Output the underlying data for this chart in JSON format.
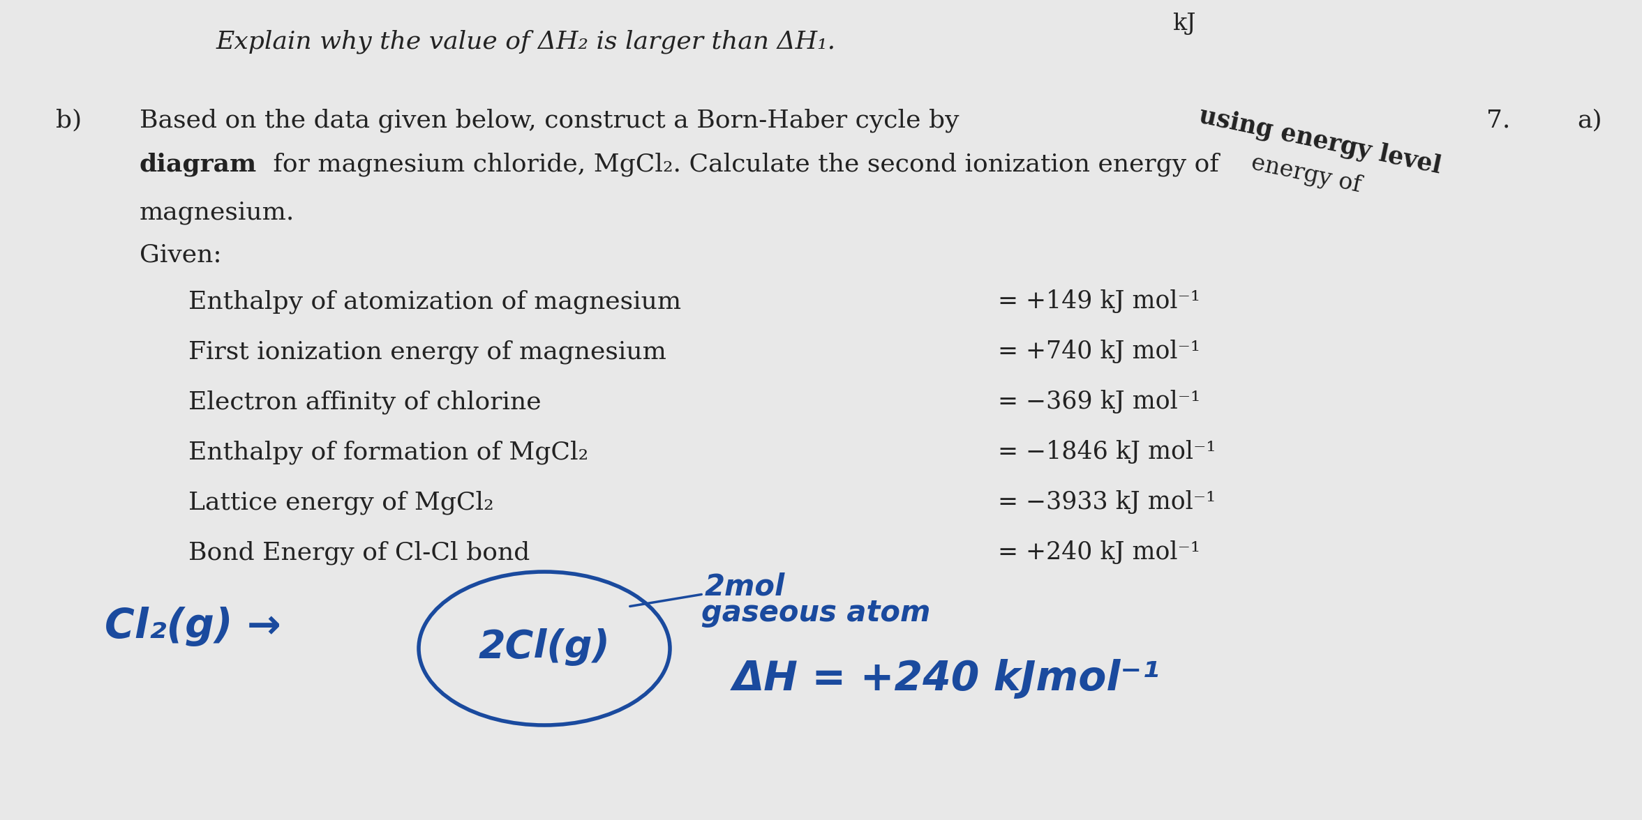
{
  "bg_color": "#e8e8e8",
  "title_line": "Explain why the value of ΔH₂ is larger than ΔH₁.",
  "part_b_label": "b)",
  "given_label": "Given:",
  "labels": [
    "Enthalpy of atomization of magnesium",
    "First ionization energy of magnesium",
    "Electron affinity of chlorine",
    "Enthalpy of formation of MgCl₂",
    "Lattice energy of MgCl₂",
    "Bond Energy of Cl-Cl bond"
  ],
  "values": [
    "= +149 kJ mol⁻¹",
    "= +740 kJ mol⁻¹",
    "= −369 kJ mol⁻¹",
    "= −1846 kJ mol⁻¹",
    "= −3933 kJ mol⁻¹",
    "= +240 kJ mol⁻¹"
  ],
  "corner_7": "7.",
  "corner_a": "a)",
  "top_right_kj": "kJ",
  "hw_color": "#1a4a9e",
  "text_color": "#222222",
  "handwritten_left": "Cl₂(g) →",
  "handwritten_circle": "2Cl(g)",
  "annot_line1": "2mol",
  "annot_line2": "gaseous atom",
  "dh_text": "ΔH = +240 kJmol⁻¹"
}
